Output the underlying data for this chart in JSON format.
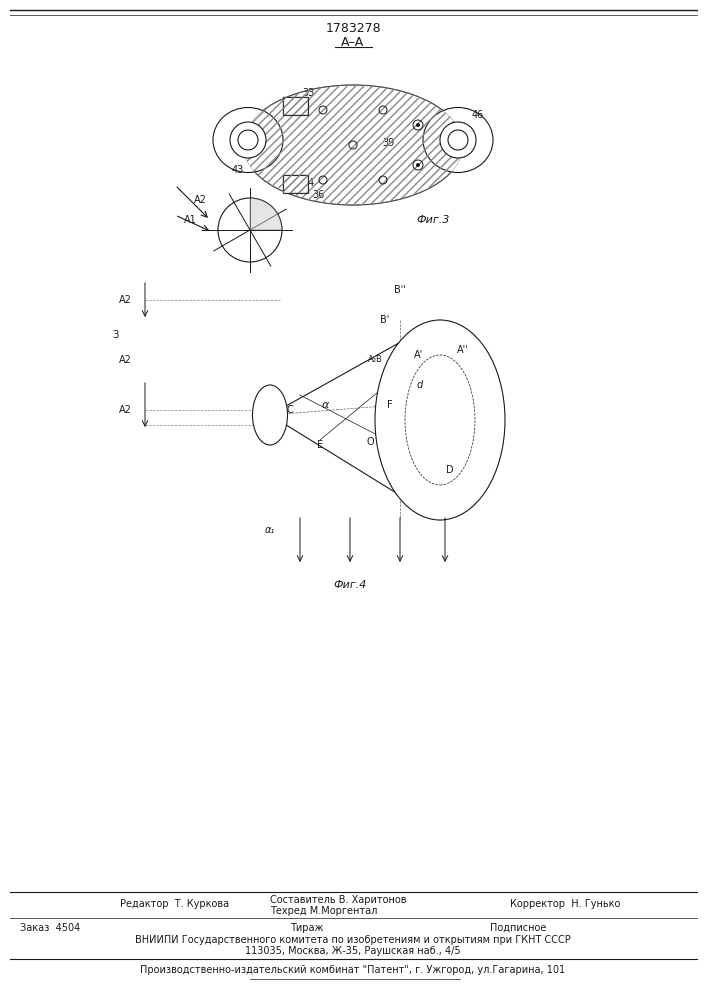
{
  "title": "1783278",
  "section_label": "A–A",
  "fig3_label": "Фиг.3",
  "fig4_label": "Фиг.4",
  "footer_line1_left": "Редактор  Т. Куркова",
  "footer_line1_center": "Составитель В. Харитонов\nТехред М.Моргентал",
  "footer_line1_right": "Корректор  Н. Гунько",
  "footer_line2_left": "Заказ  4504",
  "footer_line2_center": "Тираж",
  "footer_line2_right": "Подписное",
  "footer_line3": "ВНИИПИ Государственного комитета по изобретениям и открытиям при ГКНТ СССР",
  "footer_line4": "113035, Москва, Ж-35, Раушская наб., 4/5",
  "footer_line5": "Производственно-издательский комбинат \"Патент\", г. Ужгород, ул.Гагарина, 101",
  "bg_color": "#f5f5f0",
  "line_color": "#1a1a1a",
  "hatch_color": "#555555"
}
